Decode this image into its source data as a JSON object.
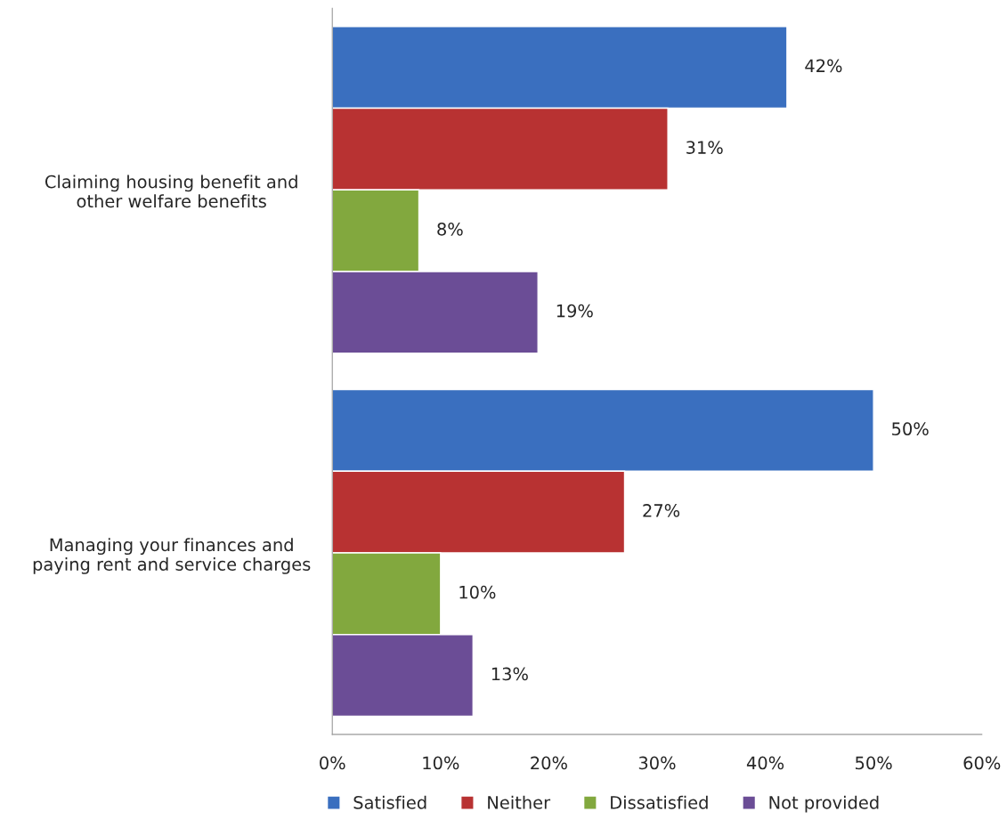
{
  "chart_data": {
    "type": "bar",
    "orientation": "horizontal",
    "categories": [
      "Claiming housing benefit and\nother welfare benefits",
      "Managing your finances and\npaying rent and service charges"
    ],
    "series": [
      {
        "name": "Satisfied",
        "color": "#3a6fbf",
        "values": [
          42,
          50
        ],
        "value_labels": [
          "42%",
          "50%"
        ]
      },
      {
        "name": "Neither",
        "color": "#b83232",
        "values": [
          31,
          27
        ],
        "value_labels": [
          "31%",
          "27%"
        ]
      },
      {
        "name": "Dissatisfied",
        "color": "#82a83e",
        "values": [
          8,
          10
        ],
        "value_labels": [
          "8%",
          "10%"
        ]
      },
      {
        "name": "Not provided",
        "color": "#6b4d96",
        "values": [
          19,
          13
        ],
        "value_labels": [
          "19%",
          "13%"
        ]
      }
    ],
    "xlim": [
      0,
      60
    ],
    "xticks": [
      {
        "value": 0,
        "label": "0%"
      },
      {
        "value": 10,
        "label": "10%"
      },
      {
        "value": 20,
        "label": "20%"
      },
      {
        "value": 30,
        "label": "30%"
      },
      {
        "value": 40,
        "label": "40%"
      },
      {
        "value": 50,
        "label": "50%"
      },
      {
        "value": 60,
        "label": "60%"
      }
    ],
    "grid": false,
    "legend": "bottom"
  }
}
